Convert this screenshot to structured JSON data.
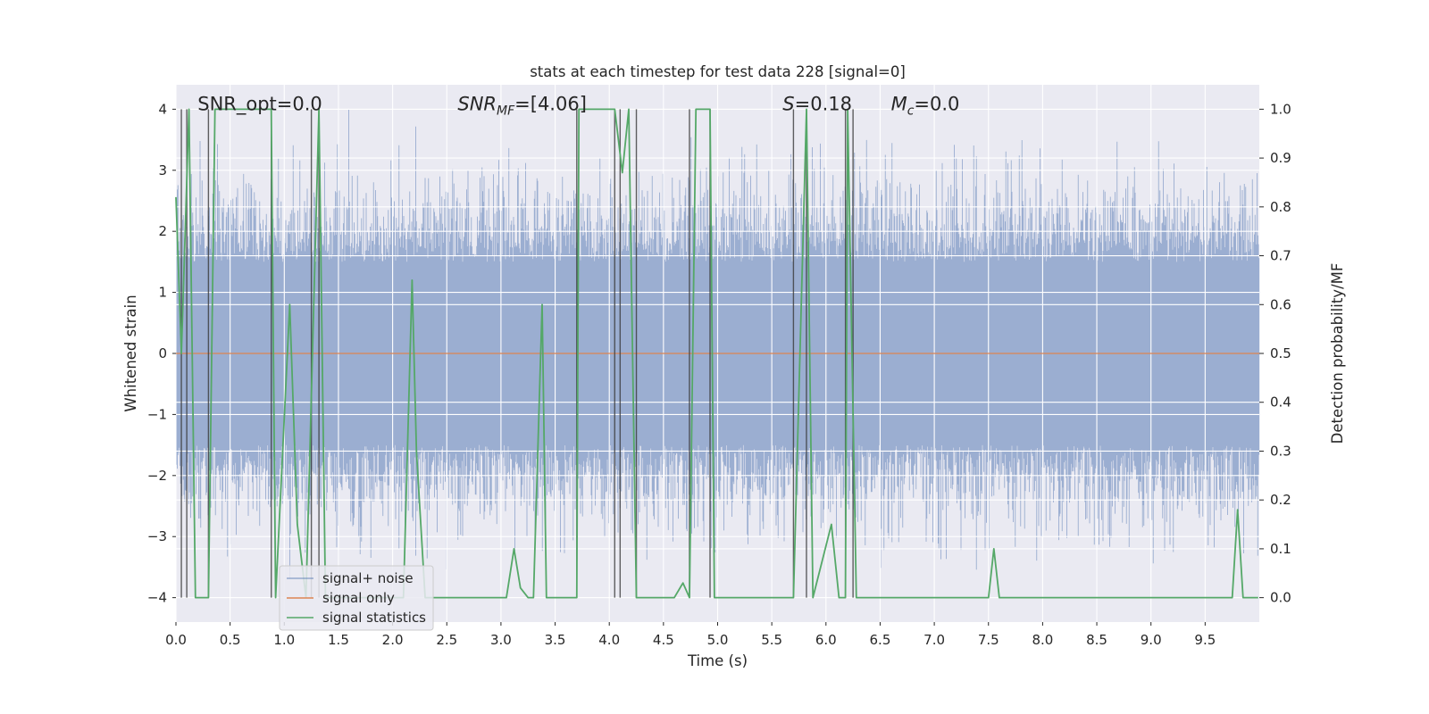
{
  "chart_data": {
    "type": "line",
    "title": "stats at each timestep for test data 228 [signal=0]",
    "xlabel": "Time (s)",
    "ylabel": "Whitened strain",
    "y2label": "Detection probability/MF",
    "xlim": [
      0,
      10
    ],
    "ylim": [
      -4.4,
      4.4
    ],
    "y2lim": [
      -0.05,
      1.05
    ],
    "xticks": [
      "0.0",
      "0.5",
      "1.0",
      "1.5",
      "2.0",
      "2.5",
      "3.0",
      "3.5",
      "4.0",
      "4.5",
      "5.0",
      "5.5",
      "6.0",
      "6.5",
      "7.0",
      "7.5",
      "8.0",
      "8.5",
      "9.0",
      "9.5"
    ],
    "yticks": [
      "−4",
      "−3",
      "−2",
      "−1",
      "0",
      "1",
      "2",
      "3",
      "4"
    ],
    "y2ticks": [
      "0.0",
      "0.1",
      "0.2",
      "0.3",
      "0.4",
      "0.5",
      "0.6",
      "0.7",
      "0.8",
      "0.9",
      "1.0"
    ],
    "grid": true,
    "legend_position": "lower-left",
    "annotations": [
      {
        "text": "SNR_opt=0.0",
        "x": 0.2,
        "y": 4.0
      },
      {
        "text": "SNR",
        "sub": "MF",
        "rest": "=[4.06]",
        "italic_prefix": true,
        "x": 2.6,
        "y": 4.0
      },
      {
        "text": "S",
        "rest": "=0.18",
        "italic_prefix": true,
        "x": 5.6,
        "y": 4.0
      },
      {
        "text": "M",
        "sub": "c",
        "rest": "=0.0",
        "italic_prefix": true,
        "x": 6.6,
        "y": 4.0
      }
    ],
    "series": [
      {
        "name": "signal+ noise",
        "color": "#4c72b0",
        "kind": "noise",
        "typical_amplitude": 1.5,
        "peak_amplitude": 3.5,
        "min_value": -3.9,
        "max_value": 4.0
      },
      {
        "name": "signal only",
        "color": "#dd8452",
        "kind": "constant",
        "value": 0.0
      },
      {
        "name": "signal statistics",
        "color": "#55a868",
        "axis": "y2",
        "x": [
          0.0,
          0.05,
          0.12,
          0.18,
          0.3,
          0.36,
          0.4,
          0.88,
          0.92,
          1.05,
          1.12,
          1.2,
          1.32,
          1.38,
          1.42,
          2.1,
          2.18,
          2.22,
          2.3,
          2.4,
          2.5,
          3.05,
          3.12,
          3.18,
          3.25,
          3.3,
          3.38,
          3.42,
          3.62,
          3.7,
          3.72,
          4.05,
          4.12,
          4.18,
          4.25,
          4.3,
          4.6,
          4.68,
          4.74,
          4.8,
          4.93,
          4.97,
          5.04,
          5.65,
          5.7,
          5.82,
          5.88,
          6.05,
          6.12,
          6.18,
          6.2,
          6.28,
          6.32,
          6.38,
          7.5,
          7.55,
          7.6,
          7.65,
          7.7,
          9.75,
          9.8,
          9.85,
          9.92,
          9.99
        ],
        "y": [
          0.82,
          0.5,
          1.0,
          0.0,
          0.0,
          1.0,
          1.0,
          1.0,
          0.0,
          0.6,
          0.15,
          0.0,
          1.0,
          0.0,
          0.0,
          0.0,
          0.65,
          0.3,
          0.0,
          0.0,
          0.0,
          0.0,
          0.1,
          0.02,
          0.0,
          0.0,
          0.6,
          0.0,
          0.0,
          0.0,
          1.0,
          1.0,
          0.87,
          1.0,
          0.0,
          0.0,
          0.0,
          0.03,
          0.0,
          1.0,
          1.0,
          0.0,
          0.0,
          0.0,
          0.0,
          1.0,
          0.0,
          0.15,
          0.0,
          0.0,
          1.0,
          0.0,
          0.0,
          0.0,
          0.0,
          0.1,
          0.0,
          0.0,
          0.0,
          0.0,
          0.18,
          0.0,
          0.0,
          0.0
        ]
      }
    ],
    "threshold_crossings_x": [
      0.05,
      0.1,
      0.3,
      0.88,
      1.25,
      1.32,
      3.7,
      4.05,
      4.1,
      4.25,
      4.74,
      4.93,
      5.7,
      5.82,
      6.18,
      6.25
    ],
    "legend": [
      {
        "label": "signal+ noise",
        "color": "#4c72b0"
      },
      {
        "label": "signal only",
        "color": "#dd8452"
      },
      {
        "label": "signal statistics",
        "color": "#55a868"
      }
    ]
  }
}
